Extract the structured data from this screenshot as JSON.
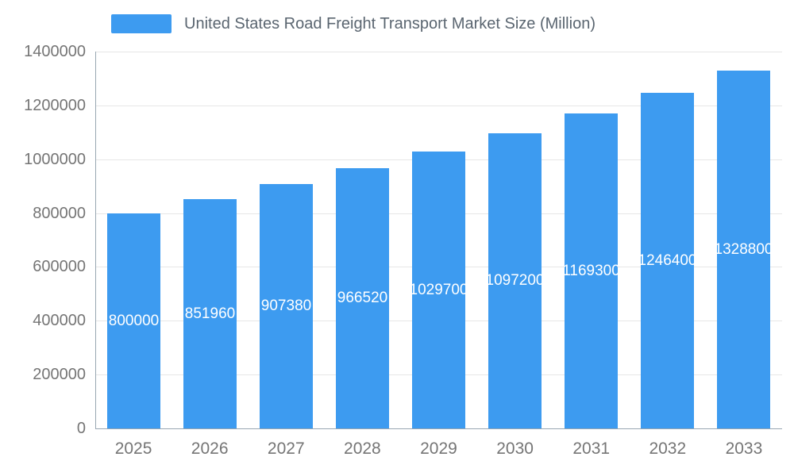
{
  "chart_data": {
    "type": "bar",
    "title": "United States Road Freight Transport Market Size (Million)",
    "categories": [
      "2025",
      "2026",
      "2027",
      "2028",
      "2029",
      "2030",
      "2031",
      "2032",
      "2033"
    ],
    "values": [
      800000,
      851960,
      907380,
      966520,
      1029700,
      1097200,
      1169300,
      1246400,
      1328800
    ],
    "xlabel": "",
    "ylabel": "",
    "ylim": [
      0,
      1400000
    ],
    "ytick_step": 200000,
    "ytick_labels": [
      "0",
      "200000",
      "400000",
      "600000",
      "800000",
      "1000000",
      "1200000",
      "1400000"
    ],
    "grid": true,
    "legend_position": "top-left",
    "bar_color": "#3d9bf0",
    "value_label_color": "#ffffff",
    "tick_label_color": "#757575",
    "title_color": "#5a6570",
    "gridline_color": "#e6e6e6",
    "axis_line_color": "#98a6b1"
  }
}
